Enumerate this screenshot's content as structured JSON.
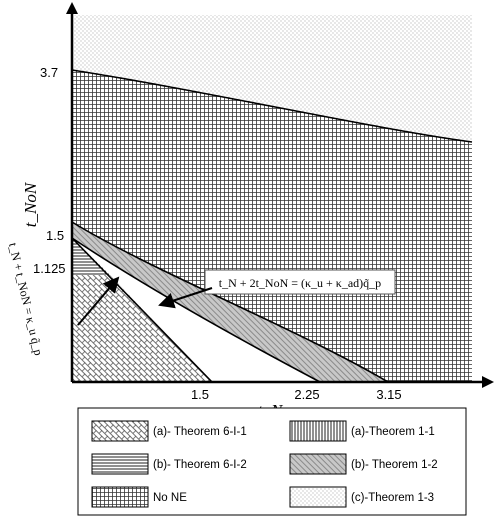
{
  "axes": {
    "x_label": "t_N",
    "y_label": "t_NoN",
    "x_ticks": [
      "1.5",
      "2.25",
      "3.15"
    ],
    "y_ticks": [
      "3.7",
      "1.5",
      "1.125"
    ]
  },
  "annotations": {
    "line1": "t_N + 2t_NoN = (κ_u + κ_ad)q̃_p",
    "line2": "t_N + t_NoN = κ_u q̃_p"
  },
  "legend": {
    "items": [
      {
        "label": "(a)- Theorem 6-I-1",
        "pattern": "brick"
      },
      {
        "label": "(a)-Theorem 1-1",
        "pattern": "vertical"
      },
      {
        "label": "(b)- Theorem 6-I-2",
        "pattern": "horizontal"
      },
      {
        "label": "(b)- Theorem 1-2",
        "pattern": "diagonal-gray"
      },
      {
        "label": "No NE",
        "pattern": "grid"
      },
      {
        "label": "(c)-Theorem 1-3",
        "pattern": "dots"
      }
    ]
  }
}
